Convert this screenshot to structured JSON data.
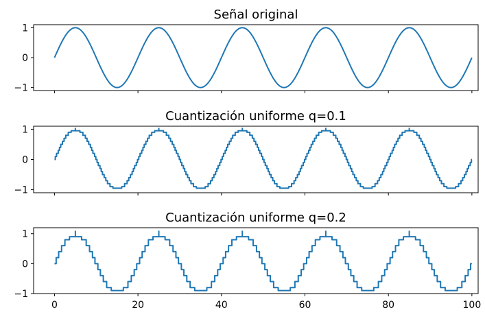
{
  "chart_data": [
    {
      "type": "line",
      "title": "Señal original",
      "xlabel": "",
      "ylabel": "",
      "xlim": [
        -5,
        101.5
      ],
      "ylim": [
        -1.1,
        1.1
      ],
      "xticks": [
        0,
        20,
        40,
        60,
        80,
        100
      ],
      "xticklabels_visible": false,
      "yticks": [
        -1,
        0,
        1
      ],
      "yticklabels": [
        "−1",
        "0",
        "1"
      ],
      "grid": false,
      "series": [
        {
          "color": "#1f77b4",
          "function": "sin",
          "period": 20,
          "x_start": 0,
          "x_end": 100,
          "step": "none",
          "peak_x": [
            5,
            25,
            45,
            65,
            85
          ],
          "trough_x": [
            15,
            35,
            55,
            75,
            95
          ]
        }
      ]
    },
    {
      "type": "line",
      "title": "Cuantización uniforme q=0.1",
      "xlabel": "",
      "ylabel": "",
      "xlim": [
        -5,
        101.5
      ],
      "ylim": [
        -1.1,
        1.1
      ],
      "xticks": [
        0,
        20,
        40,
        60,
        80,
        100
      ],
      "xticklabels_visible": false,
      "yticks": [
        -1,
        0,
        1
      ],
      "yticklabels": [
        "−1",
        "0",
        "1"
      ],
      "grid": false,
      "series": [
        {
          "color": "#1f77b4",
          "function": "sin",
          "period": 20,
          "x_start": 0,
          "x_end": 100,
          "step": "quantized",
          "q": 0.1,
          "plateau": 0.95,
          "spike": 1.05,
          "spike_x": [
            5,
            25,
            45,
            65,
            85
          ]
        }
      ]
    },
    {
      "type": "line",
      "title": "Cuantización uniforme q=0.2",
      "xlabel": "",
      "ylabel": "",
      "xlim": [
        -5,
        101.5
      ],
      "ylim": [
        -1.0,
        1.2
      ],
      "xticks": [
        0,
        20,
        40,
        60,
        80,
        100
      ],
      "xticklabels": [
        "0",
        "20",
        "40",
        "60",
        "80",
        "100"
      ],
      "xticklabels_visible": true,
      "yticks": [
        -1,
        0,
        1
      ],
      "yticklabels": [
        "−1",
        "0",
        "1"
      ],
      "grid": false,
      "series": [
        {
          "color": "#1f77b4",
          "function": "sin",
          "period": 20,
          "x_start": 0,
          "x_end": 100,
          "step": "quantized",
          "q": 0.2,
          "plateau": 0.9,
          "spike": 1.1,
          "spike_x": [
            5,
            25,
            45,
            65,
            85
          ]
        }
      ]
    }
  ]
}
